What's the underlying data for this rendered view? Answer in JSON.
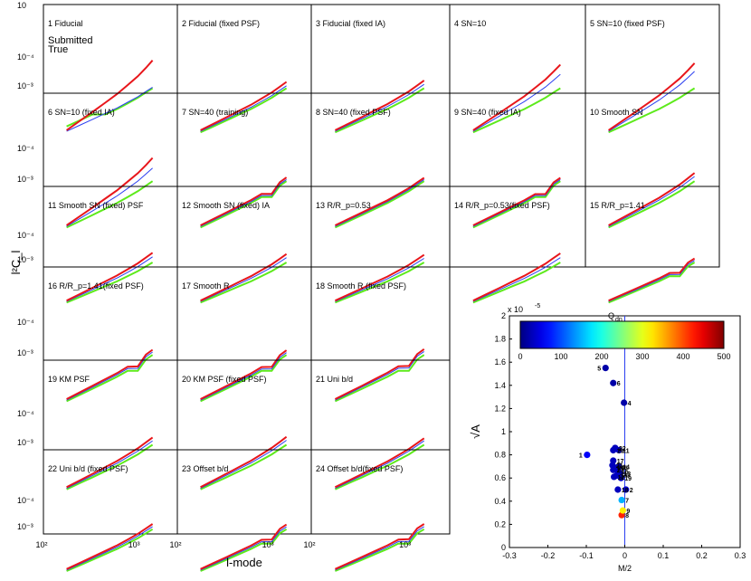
{
  "chart_data": [
    {
      "type": "line",
      "ylabel": "l²C_l",
      "xlabel": "l-mode",
      "xscale": "log",
      "yscale": "log",
      "x_ticks": [
        "10²",
        "10³"
      ],
      "y_ticks": [
        "10⁻³",
        "10⁻⁴"
      ],
      "top_corner_tick": "10",
      "legend": [
        {
          "label": "Submitted",
          "color": "#e8161b"
        },
        {
          "label": "True",
          "color": "#5dea1b"
        }
      ],
      "model_color": "#2b3ff0",
      "x": [
        180,
        250,
        350,
        480,
        650,
        850,
        1100,
        1350,
        1600
      ],
      "true_base": [
        0.0001,
        0.00013,
        0.00017,
        0.00022,
        0.00028,
        0.00036,
        0.00046,
        0.00058,
        0.0007
      ],
      "panels": [
        {
          "title": "1 Fiducial"
        },
        {
          "title": "2 Fiducial (fixed PSF)"
        },
        {
          "title": "3 Fiducial (fixed IA)"
        },
        {
          "title": "4 SN=10"
        },
        {
          "title": "5 SN=10 (fixed PSF)"
        },
        {
          "title": "6 SN=10 (fixed IA)"
        },
        {
          "title": "7 SN=40 (training)"
        },
        {
          "title": "8 SN=40 (fixed PSF)"
        },
        {
          "title": "9 SN=40 (fixed IA)"
        },
        {
          "title": "10 Smooth SN"
        },
        {
          "title": "11 Smooth SN (fixed) PSF"
        },
        {
          "title": "12 Smooth SN (fixed) IA"
        },
        {
          "title": "13 R/R_p=0.53"
        },
        {
          "title": "14 R/R_p=0.53(fixed PSF)"
        },
        {
          "title": "15 R/R_p=1.41"
        },
        {
          "title": "16 R/R_p=1.41(fixed PSF)"
        },
        {
          "title": "17 Smooth R"
        },
        {
          "title": "18 Smooth R (fixed PSF)"
        },
        {
          "title": "19 KM PSF"
        },
        {
          "title": "20 KM PSF (fixed PSF)"
        },
        {
          "title": "21 Uni b/d"
        },
        {
          "title": "22 Uni b/d (fixed PSF)"
        },
        {
          "title": "23 Offset b/d"
        },
        {
          "title": "24 Offset b/d(fixed PSF)"
        }
      ]
    },
    {
      "type": "scatter",
      "xlabel": "M/2",
      "ylabel": "√A",
      "xlim": [
        -0.3,
        0.3
      ],
      "ylim": [
        0,
        2e-05
      ],
      "x_ticks": [
        "-0.3",
        "-0.2",
        "-0.1",
        "0",
        "0.1",
        "0.2",
        "0.3"
      ],
      "y_ticks": [
        "0",
        "0.2",
        "0.4",
        "0.6",
        "0.8",
        "1",
        "1.2",
        "1.4",
        "1.6",
        "1.8",
        "2"
      ],
      "y_multiplier": "x 10",
      "y_multiplier_exp": "-5",
      "colorbar": {
        "label": "Q",
        "label_sub": "dn",
        "min": 0,
        "max": 500,
        "ticks": [
          "0",
          "100",
          "200",
          "300",
          "400",
          "500"
        ]
      },
      "vline_x": 0,
      "points": [
        {
          "label": "1",
          "x": -0.098,
          "y": 0.8,
          "q": 60
        },
        {
          "label": "2",
          "x": 0.003,
          "y": 0.5,
          "q": 40
        },
        {
          "label": "3",
          "x": -0.022,
          "y": 0.62,
          "q": 40
        },
        {
          "label": "4",
          "x": -0.002,
          "y": 1.25,
          "q": 20
        },
        {
          "label": "5",
          "x": -0.05,
          "y": 1.55,
          "q": 20
        },
        {
          "label": "6",
          "x": -0.03,
          "y": 1.42,
          "q": 20
        },
        {
          "label": "7",
          "x": -0.008,
          "y": 0.41,
          "q": 150
        },
        {
          "label": "8",
          "x": -0.008,
          "y": 0.28,
          "q": 420
        },
        {
          "label": "9",
          "x": -0.005,
          "y": 0.32,
          "q": 320
        },
        {
          "label": "10",
          "x": -0.03,
          "y": 0.84,
          "q": 30
        },
        {
          "label": "11",
          "x": -0.015,
          "y": 0.84,
          "q": 30
        },
        {
          "label": "12",
          "x": -0.028,
          "y": 0.61,
          "q": 30
        },
        {
          "label": "13",
          "x": -0.012,
          "y": 0.64,
          "q": 30
        },
        {
          "label": "14",
          "x": -0.015,
          "y": 0.7,
          "q": 30
        },
        {
          "label": "15",
          "x": -0.018,
          "y": 0.66,
          "q": 30
        },
        {
          "label": "16",
          "x": -0.02,
          "y": 0.69,
          "q": 30
        },
        {
          "label": "17",
          "x": -0.03,
          "y": 0.75,
          "q": 30
        },
        {
          "label": "18",
          "x": -0.018,
          "y": 0.5,
          "q": 30
        },
        {
          "label": "19",
          "x": -0.01,
          "y": 0.6,
          "q": 30
        },
        {
          "label": "20",
          "x": -0.015,
          "y": 0.63,
          "q": 30
        },
        {
          "label": "21",
          "x": -0.032,
          "y": 0.71,
          "q": 30
        },
        {
          "label": "22",
          "x": -0.025,
          "y": 0.86,
          "q": 30
        },
        {
          "label": "23",
          "x": -0.03,
          "y": 0.67,
          "q": 30
        },
        {
          "label": "24",
          "x": -0.028,
          "y": 0.69,
          "q": 30
        }
      ]
    }
  ]
}
